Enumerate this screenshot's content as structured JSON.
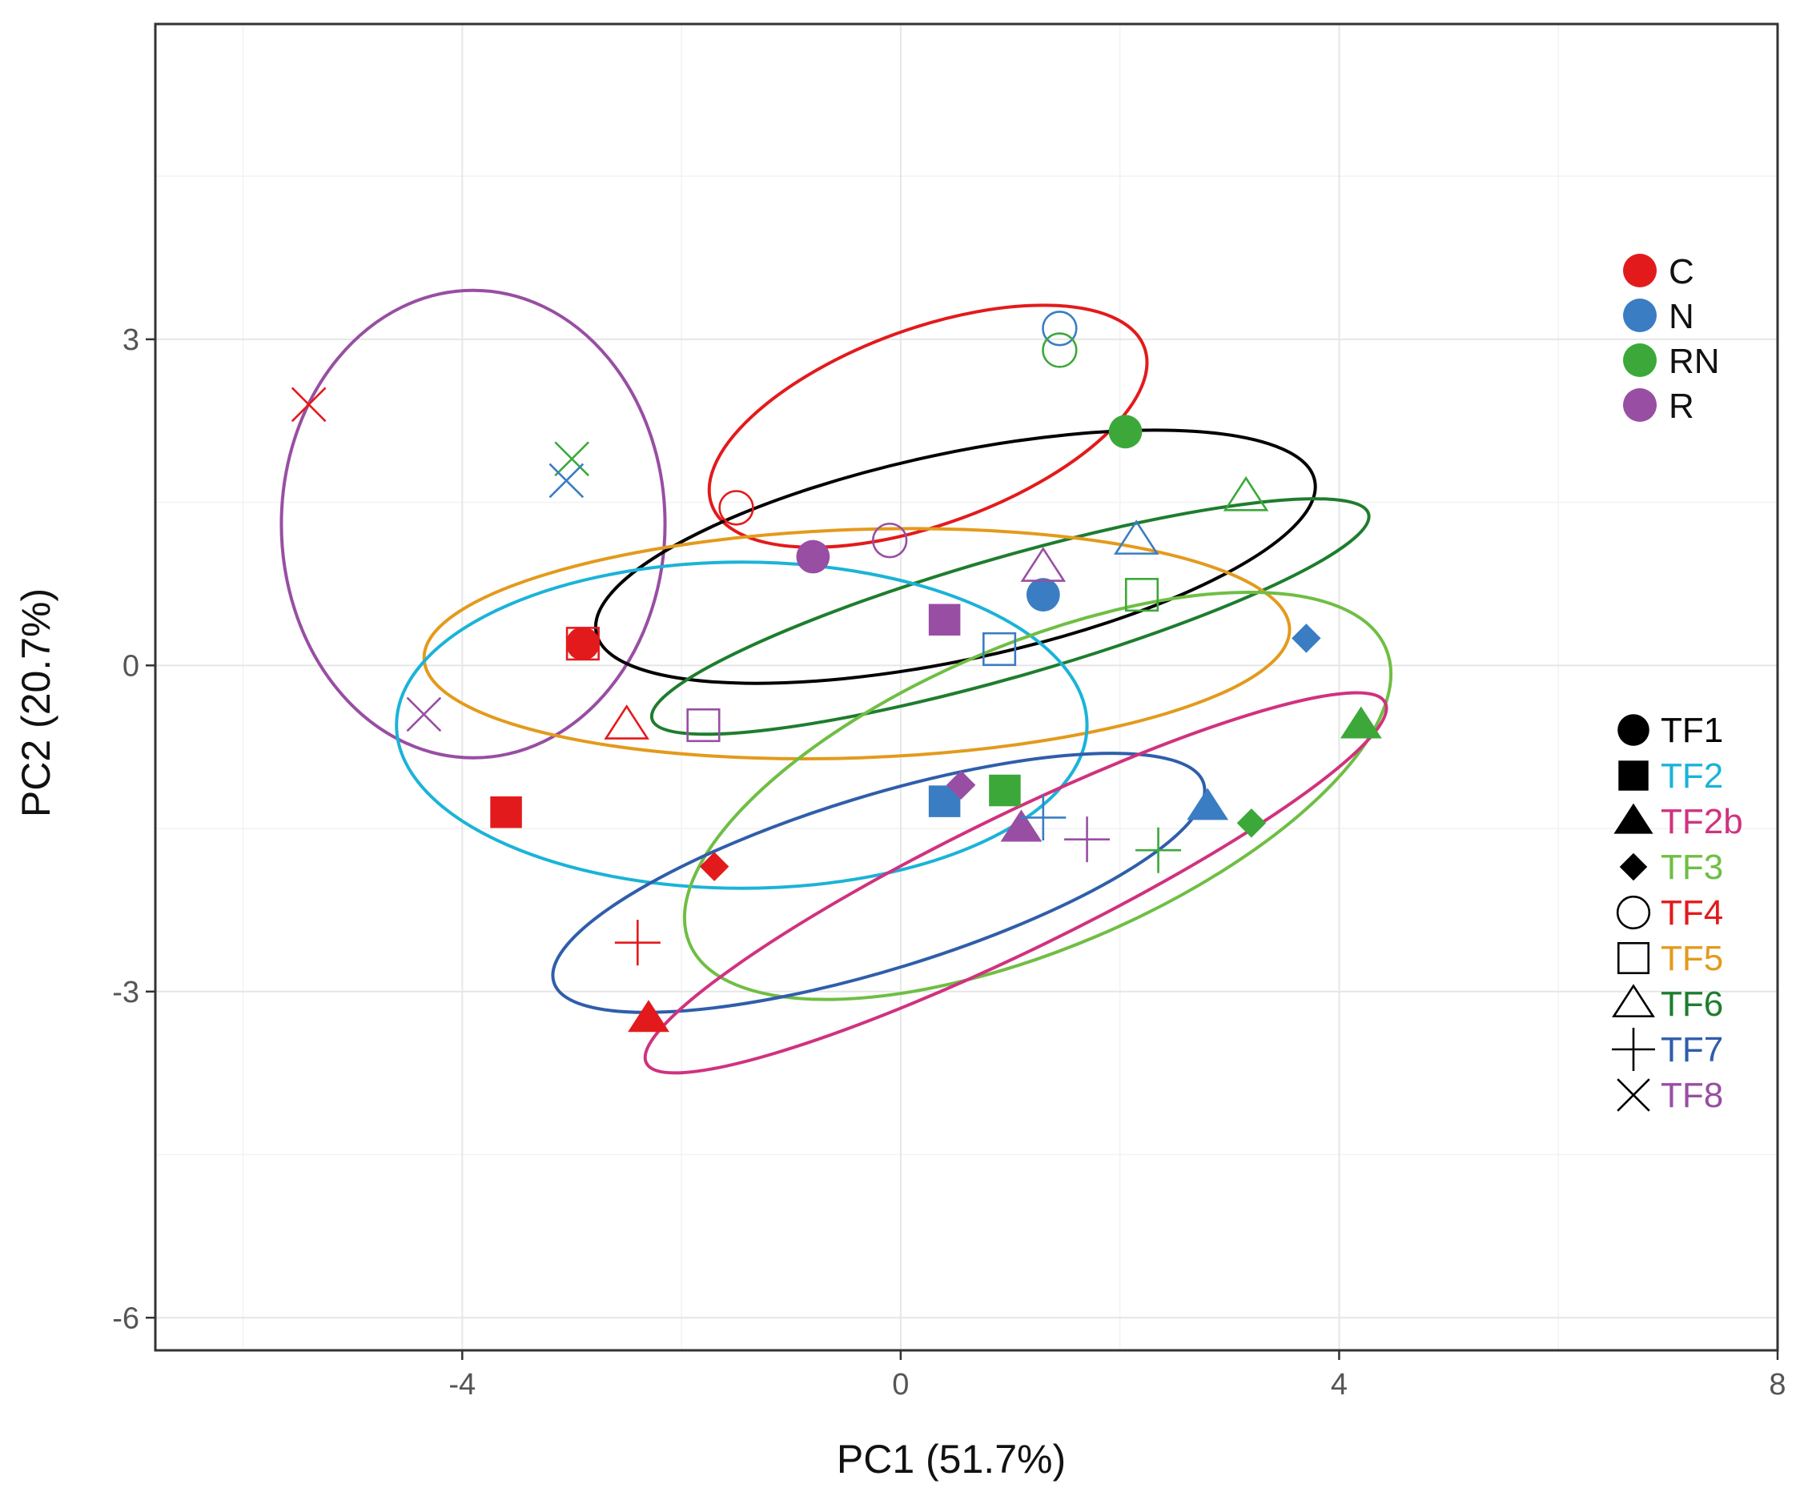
{
  "chart_data": {
    "type": "scatter",
    "xlabel": "PC1 (51.7%)",
    "ylabel": "PC2 (20.7%)",
    "xlim": [
      -6.8,
      8.0
    ],
    "ylim": [
      -6.3,
      5.9
    ],
    "x_ticks": [
      {
        "value": -4,
        "label": "-4"
      },
      {
        "value": 0,
        "label": "0"
      },
      {
        "value": 4,
        "label": "4"
      },
      {
        "value": 8,
        "label": "8"
      }
    ],
    "y_ticks": [
      {
        "value": 3,
        "label": "3"
      },
      {
        "value": 0,
        "label": "0"
      },
      {
        "value": -3,
        "label": "-3"
      },
      {
        "value": -6,
        "label": "-6"
      }
    ],
    "grid_major_x": [
      -4,
      0,
      4,
      8
    ],
    "grid_minor_x": [
      -6,
      -2,
      2,
      6
    ],
    "grid_major_y": [
      3,
      0,
      -3,
      -6
    ],
    "grid_minor_y": [
      4.5,
      1.5,
      -1.5,
      -4.5
    ],
    "grid": true,
    "colors": {
      "C": "#e31a1c",
      "N": "#3a7dc3",
      "RN": "#3ca83a",
      "R": "#984ea3",
      "black": "#000000",
      "TF1": "#000000",
      "TF2": "#1bb3d8",
      "TF2b": "#d0327f",
      "TF3": "#6fbe44",
      "TF4": "#e31a1c",
      "TF5": "#e39a1c",
      "TF6": "#1e7d2e",
      "TF7": "#2f5eaa",
      "TF8": "#984ea3"
    },
    "legend_treatment": {
      "position": "right-top",
      "items": [
        {
          "label": "C",
          "color": "#e31a1c"
        },
        {
          "label": "N",
          "color": "#3a7dc3"
        },
        {
          "label": "RN",
          "color": "#3ca83a"
        },
        {
          "label": "R",
          "color": "#984ea3"
        }
      ]
    },
    "legend_tf": {
      "position": "right-middle",
      "items": [
        {
          "label": "TF1",
          "shape": "circle-filled",
          "text_color": "#000000"
        },
        {
          "label": "TF2",
          "shape": "square-filled",
          "text_color": "#1bb3d8"
        },
        {
          "label": "TF2b",
          "shape": "triangle-filled",
          "text_color": "#d0327f"
        },
        {
          "label": "TF3",
          "shape": "diamond-filled",
          "text_color": "#6fbe44"
        },
        {
          "label": "TF4",
          "shape": "circle-open",
          "text_color": "#e31a1c"
        },
        {
          "label": "TF5",
          "shape": "square-open",
          "text_color": "#e39a1c"
        },
        {
          "label": "TF6",
          "shape": "triangle-open",
          "text_color": "#1e7d2e"
        },
        {
          "label": "TF7",
          "shape": "plus",
          "text_color": "#2f5eaa"
        },
        {
          "label": "TF8",
          "shape": "cross",
          "text_color": "#984ea3"
        }
      ]
    },
    "ellipses": [
      {
        "group": "TF8",
        "color": "#984ea3",
        "cx": -3.9,
        "cy": 1.3,
        "rx": 1.75,
        "ry": 2.15,
        "angle": 0
      },
      {
        "group": "TF4",
        "color": "#e31a1c",
        "cx": 0.25,
        "cy": 2.2,
        "rx": 2.1,
        "ry": 0.9,
        "angle": 20
      },
      {
        "group": "black",
        "color": "#000000",
        "cx": 0.5,
        "cy": 1.0,
        "rx": 3.35,
        "ry": 0.95,
        "angle": 12
      },
      {
        "group": "TF6",
        "color": "#1e7d2e",
        "cx": 1.0,
        "cy": 0.45,
        "rx": 3.4,
        "ry": 0.55,
        "angle": 16
      },
      {
        "group": "TF5",
        "color": "#e39a1c",
        "cx": -0.4,
        "cy": 0.2,
        "rx": 3.95,
        "ry": 1.05,
        "angle": 2
      },
      {
        "group": "TF2",
        "color": "#1bb3d8",
        "cx": -1.45,
        "cy": -0.55,
        "rx": 3.15,
        "ry": 1.5,
        "angle": 0
      },
      {
        "group": "TF3",
        "color": "#6fbe44",
        "cx": 1.25,
        "cy": -1.2,
        "rx": 3.45,
        "ry": 1.4,
        "angle": 23
      },
      {
        "group": "TF7",
        "color": "#2f5eaa",
        "cx": -0.2,
        "cy": -2.0,
        "rx": 3.1,
        "ry": 0.8,
        "angle": 17
      },
      {
        "group": "TF2b",
        "color": "#d0327f",
        "cx": 1.05,
        "cy": -2.0,
        "rx": 3.75,
        "ry": 0.62,
        "angle": 26
      }
    ],
    "points": [
      {
        "x": -2.9,
        "y": 0.2,
        "shape": "circle-filled",
        "group": "C"
      },
      {
        "x": 2.05,
        "y": 2.15,
        "shape": "circle-filled",
        "group": "RN"
      },
      {
        "x": 1.3,
        "y": 0.65,
        "shape": "circle-filled",
        "group": "N"
      },
      {
        "x": -0.8,
        "y": 1.0,
        "shape": "circle-filled",
        "group": "R"
      },
      {
        "x": -3.6,
        "y": -1.35,
        "shape": "square-filled",
        "group": "C"
      },
      {
        "x": 0.4,
        "y": 0.42,
        "shape": "square-filled",
        "group": "R"
      },
      {
        "x": 0.4,
        "y": -1.25,
        "shape": "square-filled",
        "group": "N"
      },
      {
        "x": 0.95,
        "y": -1.15,
        "shape": "square-filled",
        "group": "RN"
      },
      {
        "x": -2.3,
        "y": -3.25,
        "shape": "triangle-filled",
        "group": "C"
      },
      {
        "x": 1.1,
        "y": -1.5,
        "shape": "triangle-filled",
        "group": "R"
      },
      {
        "x": 2.8,
        "y": -1.3,
        "shape": "triangle-filled",
        "group": "N"
      },
      {
        "x": 4.2,
        "y": -0.55,
        "shape": "triangle-filled",
        "group": "RN"
      },
      {
        "x": -1.7,
        "y": -1.85,
        "shape": "diamond-filled",
        "group": "C"
      },
      {
        "x": 0.55,
        "y": -1.1,
        "shape": "diamond-filled",
        "group": "R"
      },
      {
        "x": 3.2,
        "y": -1.45,
        "shape": "diamond-filled",
        "group": "RN"
      },
      {
        "x": 3.7,
        "y": 0.25,
        "shape": "diamond-filled",
        "group": "N"
      },
      {
        "x": -1.5,
        "y": 1.45,
        "shape": "circle-open",
        "group": "C"
      },
      {
        "x": -0.1,
        "y": 1.15,
        "shape": "circle-open",
        "group": "R"
      },
      {
        "x": 1.45,
        "y": 3.1,
        "shape": "circle-open",
        "group": "N"
      },
      {
        "x": 1.45,
        "y": 2.9,
        "shape": "circle-open",
        "group": "RN"
      },
      {
        "x": -2.9,
        "y": 0.2,
        "shape": "square-open",
        "group": "C"
      },
      {
        "x": -1.8,
        "y": -0.55,
        "shape": "square-open",
        "group": "R"
      },
      {
        "x": 0.9,
        "y": 0.15,
        "shape": "square-open",
        "group": "N"
      },
      {
        "x": 2.2,
        "y": 0.65,
        "shape": "square-open",
        "group": "RN"
      },
      {
        "x": -2.5,
        "y": -0.55,
        "shape": "triangle-open",
        "group": "C"
      },
      {
        "x": 1.3,
        "y": 0.9,
        "shape": "triangle-open",
        "group": "R"
      },
      {
        "x": 2.15,
        "y": 1.15,
        "shape": "triangle-open",
        "group": "N"
      },
      {
        "x": 3.15,
        "y": 1.55,
        "shape": "triangle-open",
        "group": "RN"
      },
      {
        "x": -2.4,
        "y": -2.55,
        "shape": "plus",
        "group": "C"
      },
      {
        "x": 1.3,
        "y": -1.4,
        "shape": "plus",
        "group": "N"
      },
      {
        "x": 1.7,
        "y": -1.6,
        "shape": "plus",
        "group": "R"
      },
      {
        "x": 2.35,
        "y": -1.7,
        "shape": "plus",
        "group": "RN"
      },
      {
        "x": -5.4,
        "y": 2.4,
        "shape": "cross",
        "group": "C"
      },
      {
        "x": -3.0,
        "y": 1.9,
        "shape": "cross",
        "group": "RN"
      },
      {
        "x": -3.05,
        "y": 1.7,
        "shape": "cross",
        "group": "N"
      },
      {
        "x": -4.35,
        "y": -0.45,
        "shape": "cross",
        "group": "R"
      }
    ]
  }
}
